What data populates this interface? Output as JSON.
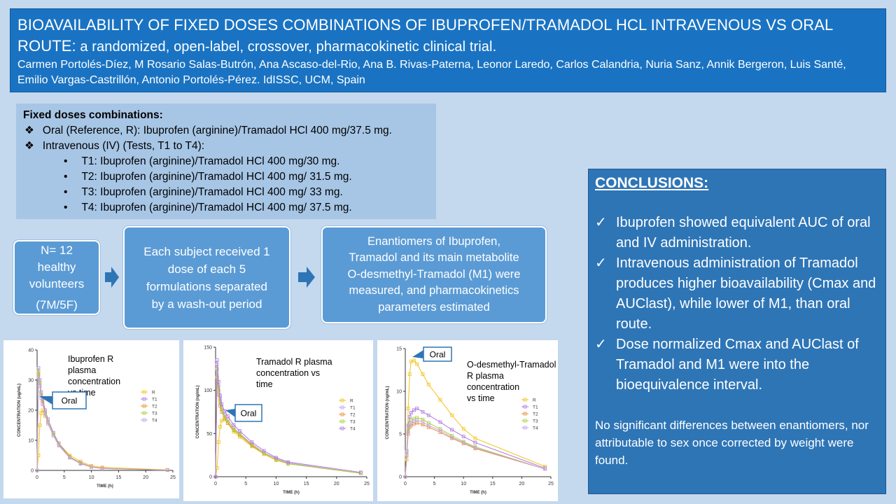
{
  "header": {
    "title_main": "BIOAVAILABILITY OF FIXED DOSES COMBINATIONS OF IBUPROFEN/TRAMADOL HCL INTRAVENOUS VS ORAL ROUTE:",
    "title_sub": " a randomized, open-label, crossover, pharmacokinetic clinical trial.",
    "authors": "Carmen Portolés-Díez, M Rosario Salas-Butrón, Ana Ascaso-del-Rio, Ana B. Rivas-Paterna, Leonor Laredo, Carlos Calandria, Nuria Sanz, Annik Bergeron, Luis Santé, Emilio Vargas-Castrillón, Antonio Portolés-Pérez. IdISSC, UCM, Spain"
  },
  "doses": {
    "title": "Fixed doses combinations:",
    "bullet_symbol": "❖",
    "sub_bullet": "•",
    "oral": "Oral (Reference, R):  Ibuprofen (arginine)/Tramadol HCl 400 mg/37.5 mg.",
    "iv": "Intravenous (IV) (Tests, T1 to T4):",
    "tests": [
      "T1: Ibuprofen (arginine)/Tramadol HCl 400 mg/30 mg.",
      "T2: Ibuprofen (arginine)/Tramadol HCl 400 mg/ 31.5 mg.",
      "T3: Ibuprofen (arginine)/Tramadol HCl 400 mg/ 33 mg.",
      "T4: Ibuprofen (arginine)/Tramadol HCl 400 mg/ 37.5 mg."
    ]
  },
  "flow": {
    "box1": [
      "N= 12",
      "healthy",
      "volunteers",
      "",
      "(7M/5F)"
    ],
    "box2": [
      "Each subject received 1",
      "dose of each 5",
      "formulations separated",
      "by a wash-out period"
    ],
    "box3": [
      "Enantiomers of Ibuprofen,",
      "Tramadol and its main metabolite",
      "O-desmethyl-Tramadol (M1) were",
      "measured, and pharmacokinetics",
      "parameters estimated"
    ]
  },
  "conclusions": {
    "heading": "CONCLUSIONS:",
    "check": "✓",
    "items": [
      "Ibuprofen showed equivalent AUC of oral and IV administration.",
      "Intravenous administration of Tramadol produces higher bioavailability (Cmax and AUClast), while lower of M1, than oral route.",
      "Dose normalized Cmax and AUClast of Tramadol and M1 were into the bioequivalence interval."
    ],
    "footer": "No significant differences  between enantiomers, nor attributable to sex once corrected by weight were found."
  },
  "chart_data": [
    {
      "type": "line",
      "title": "Ibuprofen R plasma concentration vs time",
      "annotation": "Oral",
      "xlabel": "TIME (h)",
      "ylabel": "CONCENTRATION (ug/mL)",
      "xlim": [
        0,
        25
      ],
      "ylim": [
        0,
        40
      ],
      "xticks": [
        0,
        5,
        10,
        15,
        20,
        25
      ],
      "yticks": [
        0,
        10,
        20,
        30,
        40
      ],
      "x": [
        0,
        0.25,
        0.5,
        0.75,
        1,
        1.5,
        2,
        3,
        4,
        6,
        8,
        10,
        12,
        24
      ],
      "series": [
        {
          "name": "R",
          "color": "#f2c418",
          "values": [
            0,
            5,
            15,
            19,
            20,
            18,
            16,
            12,
            9,
            5,
            3,
            1.5,
            1,
            0.2
          ]
        },
        {
          "name": "T1",
          "color": "#b07ae0",
          "values": [
            0,
            34,
            30,
            26,
            24,
            20,
            17,
            12.5,
            9,
            4.5,
            2.5,
            1.2,
            0.7,
            0.1
          ]
        },
        {
          "name": "T2",
          "color": "#e8903c",
          "values": [
            0,
            32,
            29,
            25,
            23,
            19,
            16,
            12,
            8.5,
            4.5,
            2.4,
            1.2,
            0.7,
            0.1
          ]
        },
        {
          "name": "T3",
          "color": "#a6d43a",
          "values": [
            0,
            33,
            29,
            25,
            22,
            19,
            16,
            12,
            8.5,
            4.3,
            2.3,
            1.1,
            0.6,
            0.1
          ]
        },
        {
          "name": "T4",
          "color": "#c7a3e8",
          "values": [
            0,
            31,
            28,
            24,
            22,
            18.5,
            15.5,
            11.5,
            8.2,
            4.2,
            2.2,
            1.1,
            0.6,
            0.1
          ]
        }
      ]
    },
    {
      "type": "line",
      "title": "Tramadol R plasma concentration vs time",
      "annotation": "Oral",
      "xlabel": "TIME (h)",
      "ylabel": "CONCENTRATION (ng/mL)",
      "xlim": [
        0,
        25
      ],
      "ylim": [
        0,
        150
      ],
      "xticks": [
        0,
        5,
        10,
        15,
        20,
        25
      ],
      "yticks": [
        0,
        50,
        100,
        150
      ],
      "x": [
        0,
        0.25,
        0.5,
        0.75,
        1,
        1.5,
        2,
        3,
        4,
        6,
        8,
        10,
        12,
        24
      ],
      "series": [
        {
          "name": "R",
          "color": "#f2c418",
          "values": [
            0,
            10,
            40,
            58,
            65,
            66,
            62,
            52,
            46,
            35,
            26,
            19,
            15,
            4
          ]
        },
        {
          "name": "T1",
          "color": "#c7a3e8",
          "values": [
            0,
            130,
            105,
            90,
            80,
            72,
            66,
            57,
            50,
            38,
            28,
            21,
            16,
            4
          ]
        },
        {
          "name": "T2",
          "color": "#e8903c",
          "values": [
            0,
            115,
            95,
            82,
            75,
            68,
            62,
            54,
            48,
            36,
            27,
            20,
            15,
            4
          ]
        },
        {
          "name": "T3",
          "color": "#a6d43a",
          "values": [
            0,
            125,
            100,
            86,
            78,
            70,
            64,
            55,
            49,
            37,
            27,
            20,
            15,
            4
          ]
        },
        {
          "name": "T4",
          "color": "#b07ae0",
          "values": [
            0,
            135,
            110,
            94,
            84,
            76,
            70,
            60,
            53,
            40,
            30,
            22,
            17,
            5
          ]
        }
      ]
    },
    {
      "type": "line",
      "title": "O-desmethyl-Tramadol R plasma concentration vs time",
      "annotation": "Oral",
      "xlabel": "TIME (h)",
      "ylabel": "CONCENTRATION (ng/mL)",
      "xlim": [
        0,
        25
      ],
      "ylim": [
        0,
        15
      ],
      "xticks": [
        0,
        5,
        10,
        15,
        20,
        25
      ],
      "yticks": [
        0,
        5,
        10,
        15
      ],
      "x": [
        0,
        0.25,
        0.5,
        0.75,
        1,
        1.5,
        2,
        3,
        4,
        6,
        8,
        10,
        12,
        24
      ],
      "series": [
        {
          "name": "R",
          "color": "#f2c418",
          "values": [
            0,
            2,
            8,
            12,
            13.5,
            13.6,
            13.2,
            12,
            10.8,
            9,
            7.2,
            5.6,
            4.5,
            1.2
          ]
        },
        {
          "name": "T1",
          "color": "#b07ae0",
          "values": [
            0,
            3,
            6,
            7,
            7.5,
            7.8,
            8,
            7.6,
            7.2,
            6.4,
            5.5,
            4.7,
            4,
            1
          ]
        },
        {
          "name": "T2",
          "color": "#e8903c",
          "values": [
            0,
            2.5,
            5,
            5.8,
            6,
            6.2,
            6.3,
            6.1,
            5.8,
            5.2,
            4.5,
            3.9,
            3.3,
            0.9
          ]
        },
        {
          "name": "T3",
          "color": "#a6d43a",
          "values": [
            0,
            2.8,
            5.5,
            6.3,
            6.6,
            6.8,
            6.9,
            6.7,
            6.3,
            5.6,
            4.8,
            4.1,
            3.5,
            0.9
          ]
        },
        {
          "name": "T4",
          "color": "#c7a3e8",
          "values": [
            0,
            2.6,
            5.2,
            6,
            6.3,
            6.5,
            6.6,
            6.4,
            6,
            5.4,
            4.6,
            4,
            3.4,
            0.9
          ]
        }
      ]
    }
  ]
}
